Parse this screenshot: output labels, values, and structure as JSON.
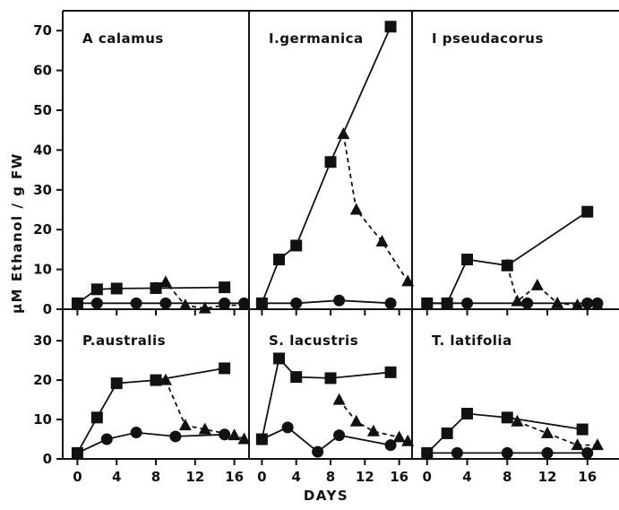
{
  "chart_data": {
    "type": "line",
    "xlabel": "DAYS",
    "ylabel": "µM Ethanol / g FW",
    "x_ticks": [
      0,
      4,
      8,
      12,
      16
    ],
    "top_row_ylim": [
      0,
      75
    ],
    "top_row_yticks": [
      0,
      10,
      20,
      30,
      40,
      50,
      60,
      70
    ],
    "bottom_row_ylim": [
      0,
      38
    ],
    "bottom_row_yticks": [
      0,
      10,
      20,
      30
    ],
    "xlim": [
      -1.5,
      17.5
    ],
    "panels": [
      {
        "title": "A calamus",
        "row": 0,
        "col": 0,
        "series": [
          {
            "marker": "square",
            "style": "solid",
            "x": [
              0,
              2,
              4,
              8,
              15
            ],
            "y": [
              1.5,
              5,
              5.2,
              5.3,
              5.5
            ]
          },
          {
            "marker": "triangle",
            "style": "dashed",
            "x": [
              8,
              9,
              11,
              13,
              15,
              17
            ],
            "y": [
              5.3,
              6.8,
              1,
              0.2,
              1,
              1
            ]
          },
          {
            "marker": "circle",
            "style": "solid",
            "x": [
              0,
              2,
              6,
              9,
              15,
              17
            ],
            "y": [
              1.5,
              1.5,
              1.5,
              1.5,
              1.5,
              1.5
            ]
          }
        ]
      },
      {
        "title": "I.germanica",
        "row": 0,
        "col": 1,
        "series": [
          {
            "marker": "square",
            "style": "solid",
            "x": [
              0,
              2,
              4,
              8,
              15
            ],
            "y": [
              1.5,
              12.5,
              16,
              37,
              71
            ]
          },
          {
            "marker": "triangle",
            "style": "dashed",
            "x": [
              9.5,
              11,
              14,
              17
            ],
            "y": [
              44,
              25,
              17,
              7
            ]
          },
          {
            "marker": "circle",
            "style": "solid",
            "x": [
              0,
              4,
              9,
              15
            ],
            "y": [
              1.5,
              1.5,
              2.2,
              1.5
            ]
          }
        ]
      },
      {
        "title": "I pseudacorus",
        "row": 0,
        "col": 2,
        "series": [
          {
            "marker": "square",
            "style": "solid",
            "x": [
              0,
              2,
              4,
              8,
              16
            ],
            "y": [
              1.5,
              1.5,
              12.5,
              11,
              24.5
            ]
          },
          {
            "marker": "triangle",
            "style": "dashed",
            "x": [
              8,
              9,
              11,
              13,
              15,
              17
            ],
            "y": [
              11,
              2,
              6,
              1.5,
              1,
              1
            ]
          },
          {
            "marker": "circle",
            "style": "solid",
            "x": [
              0,
              2,
              4,
              10,
              16,
              17
            ],
            "y": [
              1.5,
              1.5,
              1.5,
              1.5,
              1.5,
              1.5
            ]
          }
        ]
      },
      {
        "title": "P.australis",
        "row": 1,
        "col": 0,
        "series": [
          {
            "marker": "square",
            "style": "solid",
            "x": [
              0,
              2,
              4,
              8,
              15
            ],
            "y": [
              1.5,
              10.5,
              19.2,
              20,
              23
            ]
          },
          {
            "marker": "triangle",
            "style": "dashed",
            "x": [
              9,
              11,
              13,
              16,
              17
            ],
            "y": [
              20,
              8.5,
              7.5,
              6,
              5
            ]
          },
          {
            "marker": "circle",
            "style": "solid",
            "x": [
              0,
              3,
              6,
              10,
              15
            ],
            "y": [
              1.5,
              5,
              6.7,
              5.7,
              6.2
            ]
          }
        ]
      },
      {
        "title": "S. lacustris",
        "row": 1,
        "col": 1,
        "series": [
          {
            "marker": "square",
            "style": "solid",
            "x": [
              0,
              2,
              4,
              8,
              15
            ],
            "y": [
              5,
              25.5,
              20.8,
              20.5,
              22
            ]
          },
          {
            "marker": "triangle",
            "style": "dashed",
            "x": [
              9,
              11,
              13,
              16,
              17
            ],
            "y": [
              15,
              9.5,
              7,
              5.5,
              4.5
            ]
          },
          {
            "marker": "circle",
            "style": "solid",
            "x": [
              0,
              3,
              6.5,
              9,
              15
            ],
            "y": [
              5,
              8,
              1.8,
              6,
              3.5
            ]
          }
        ]
      },
      {
        "title": "T. latifolia",
        "row": 1,
        "col": 2,
        "series": [
          {
            "marker": "square",
            "style": "solid",
            "x": [
              0,
              2,
              4,
              8,
              15.5
            ],
            "y": [
              1.5,
              6.5,
              11.5,
              10.5,
              7.5
            ]
          },
          {
            "marker": "triangle",
            "style": "dashed",
            "x": [
              9,
              12,
              15,
              17
            ],
            "y": [
              9.5,
              6.5,
              3.5,
              3.5
            ]
          },
          {
            "marker": "circle",
            "style": "solid",
            "x": [
              0,
              3,
              8,
              12,
              16
            ],
            "y": [
              1.5,
              1.5,
              1.5,
              1.5,
              1.5
            ]
          }
        ]
      }
    ]
  }
}
